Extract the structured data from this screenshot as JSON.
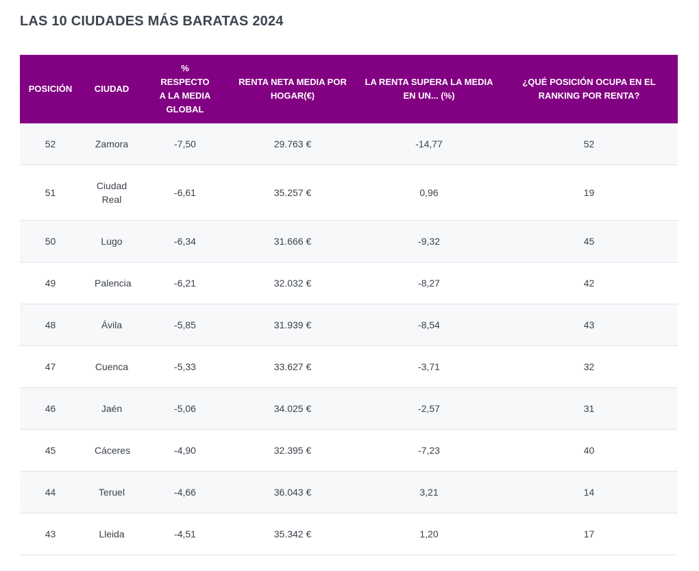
{
  "header": {
    "title": "LAS 10 CIUDADES MÁS  BARATAS 2024"
  },
  "table": {
    "columns": [
      "POSICIÓN",
      "CIUDAD",
      "% RESPECTO A LA MEDIA GLOBAL",
      "RENTA NETA MEDIA POR HOGAR(€)",
      "LA RENTA SUPERA LA MEDIA EN UN... (%)",
      "¿QUÉ POSICIÓN OCUPA EN EL RANKING POR RENTA?"
    ],
    "rows": [
      [
        "52",
        "Zamora",
        "-7,50",
        "29.763 €",
        "-14,77",
        "52"
      ],
      [
        "51",
        "Ciudad Real",
        "-6,61",
        "35.257 €",
        "0,96",
        "19"
      ],
      [
        "50",
        "Lugo",
        "-6,34",
        "31.666 €",
        "-9,32",
        "45"
      ],
      [
        "49",
        "Palencia",
        "-6,21",
        "32.032 €",
        "-8,27",
        "42"
      ],
      [
        "48",
        "Ávila",
        "-5,85",
        "31.939 €",
        "-8,54",
        "43"
      ],
      [
        "47",
        "Cuenca",
        "-5,33",
        "33.627 €",
        "-3,71",
        "32"
      ],
      [
        "46",
        "Jaén",
        "-5,06",
        "34.025 €",
        "-2,57",
        "31"
      ],
      [
        "45",
        "Cáceres",
        "-4,90",
        "32.395 €",
        "-7,23",
        "40"
      ],
      [
        "44",
        "Teruel",
        "-4,66",
        "36.043 €",
        "3,21",
        "14"
      ],
      [
        "43",
        "Lleida",
        "-4,51",
        "35.342 €",
        "1,20",
        "17"
      ]
    ]
  }
}
